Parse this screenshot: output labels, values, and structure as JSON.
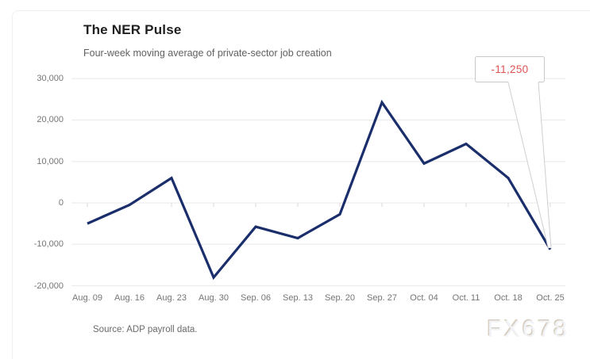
{
  "header": {
    "title": "The NER Pulse",
    "subtitle": "Four-week moving average of private-sector job creation"
  },
  "footer": {
    "source": "Source: ADP payroll data.",
    "watermark": "FX678"
  },
  "annotation": {
    "label": "-11,250",
    "text_color": "#df5353"
  },
  "chart_data": {
    "type": "line",
    "title": "The NER Pulse",
    "subtitle": "Four-week moving average of private-sector job creation",
    "categories": [
      "Aug. 09",
      "Aug. 16",
      "Aug. 23",
      "Aug. 30",
      "Sep. 06",
      "Sep. 13",
      "Sep. 20",
      "Sep. 27",
      "Oct. 04",
      "Oct. 11",
      "Oct. 18",
      "Oct. 25"
    ],
    "series": [
      {
        "name": "Four-week moving average of private-sector job creation",
        "values": [
          -5000,
          -500,
          6000,
          -18000,
          -5750,
          -8500,
          -2750,
          24250,
          9500,
          14250,
          6000,
          -11250
        ]
      }
    ],
    "ylim": [
      -20000,
      30000
    ],
    "yticks": [
      30000,
      20000,
      10000,
      0,
      -10000,
      -20000
    ],
    "ytick_labels": [
      "30,000",
      "20,000",
      "10,000",
      "0",
      "-10,000",
      "-20,000"
    ],
    "grid": true,
    "legend": "none",
    "line_color": "#1a2e6c",
    "gridline_color": "#e8e8e8",
    "annotation": {
      "category": "Oct. 25",
      "value_label": "-11,250"
    },
    "source": "Source: ADP payroll data."
  }
}
